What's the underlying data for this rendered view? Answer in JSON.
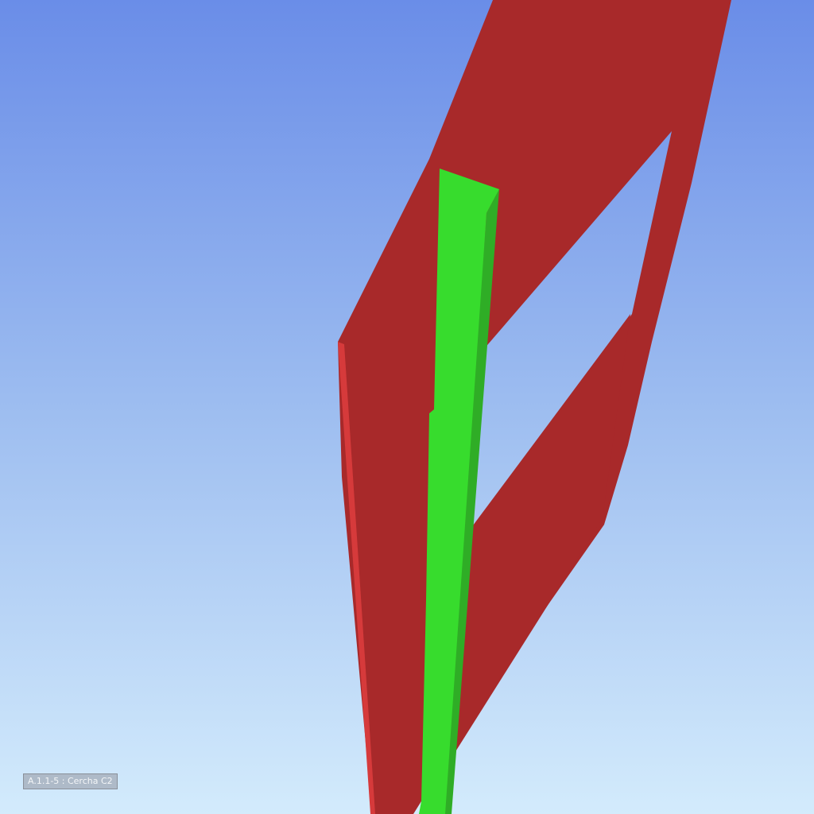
{
  "viewport": {
    "selection_label": "A.1.1-5 : Cercha C2"
  },
  "colors": {
    "sky_top": "#6a8de8",
    "sky_bottom": "#d3ebfc",
    "truss_red": "#a8292a",
    "truss_red_edge": "#d63a3b",
    "member_green": "#37dc2d",
    "member_green_shade": "#2fad26"
  }
}
